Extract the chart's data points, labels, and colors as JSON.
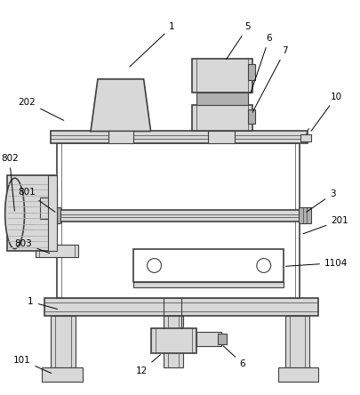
{
  "bg_color": "#ffffff",
  "line_color": "#404040",
  "lgray": "#d8d8d8",
  "mgray": "#b0b0b0",
  "dgray": "#909090",
  "white": "#ffffff",
  "figsize": [
    4.06,
    4.44
  ],
  "dpi": 100
}
